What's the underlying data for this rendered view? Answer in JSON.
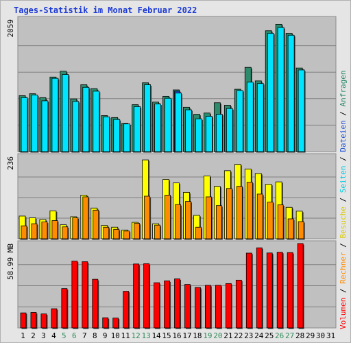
{
  "header": {
    "title": "Tages-Statistik im Monat Februar 2022"
  },
  "colors": {
    "anfragen": "#2e8b6b",
    "dateien": "#00e5ff",
    "seiten": "#1e50d0",
    "besuche": "#ffff00",
    "rechner": "#ff8c00",
    "volumen": "#ff0000",
    "weekend_day": "#2e8b57",
    "workday": "#000000",
    "panel": "#c0c0c0",
    "grid": "#808080"
  },
  "chart_data": [
    {
      "type": "bar",
      "panel": "hits",
      "ylabel": "2059",
      "ymax": 2059,
      "categories": [
        "1",
        "2",
        "3",
        "4",
        "5",
        "6",
        "7",
        "8",
        "9",
        "10",
        "11",
        "12",
        "13",
        "14",
        "15",
        "16",
        "17",
        "18",
        "19",
        "20",
        "21",
        "22",
        "23",
        "24",
        "25",
        "26",
        "27",
        "28",
        "29",
        "30",
        "31"
      ],
      "weekend": [
        "5",
        "6",
        "12",
        "13",
        "19",
        "20",
        "26",
        "27"
      ],
      "series": [
        {
          "name": "Anfragen",
          "values": [
            870,
            900,
            840,
            1160,
            1250,
            820,
            1040,
            980,
            560,
            530,
            440,
            730,
            1070,
            770,
            860,
            960,
            690,
            580,
            600,
            760,
            720,
            970,
            1310,
            1100,
            1880,
            1980,
            1840,
            1300,
            0,
            0,
            0
          ]
        },
        {
          "name": "Dateien",
          "values": [
            840,
            880,
            790,
            1140,
            1200,
            780,
            1000,
            940,
            540,
            500,
            430,
            700,
            1040,
            740,
            830,
            910,
            650,
            510,
            550,
            580,
            670,
            950,
            1080,
            1060,
            1840,
            1930,
            1810,
            1270,
            0,
            0,
            0
          ]
        },
        {
          "name": "Seiten",
          "values": [
            0,
            0,
            0,
            0,
            0,
            0,
            0,
            0,
            0,
            0,
            0,
            0,
            0,
            0,
            0,
            940,
            0,
            0,
            0,
            0,
            0,
            0,
            0,
            0,
            0,
            0,
            0,
            0,
            0,
            0,
            0
          ]
        }
      ]
    },
    {
      "type": "bar",
      "panel": "visits",
      "ylabel": "236",
      "ymax": 236,
      "categories": [
        "1",
        "2",
        "3",
        "4",
        "5",
        "6",
        "7",
        "8",
        "9",
        "10",
        "11",
        "12",
        "13",
        "14",
        "15",
        "16",
        "17",
        "18",
        "19",
        "20",
        "21",
        "22",
        "23",
        "24",
        "25",
        "26",
        "27",
        "28",
        "29",
        "30",
        "31"
      ],
      "series": [
        {
          "name": "Besuche",
          "values": [
            65,
            60,
            55,
            80,
            40,
            63,
            125,
            88,
            38,
            33,
            25,
            47,
            226,
            43,
            170,
            160,
            133,
            67,
            180,
            150,
            195,
            213,
            200,
            187,
            156,
            163,
            90,
            79,
            0,
            0,
            0
          ]
        },
        {
          "name": "Rechner",
          "values": [
            37,
            43,
            48,
            52,
            34,
            60,
            120,
            82,
            33,
            27,
            22,
            44,
            122,
            39,
            125,
            98,
            107,
            33,
            120,
            95,
            144,
            150,
            162,
            128,
            105,
            97,
            57,
            49,
            0,
            0,
            0
          ]
        }
      ]
    },
    {
      "type": "bar",
      "panel": "volume",
      "ylabel": "58.99 MB",
      "ymax": 58.99,
      "categories": [
        "1",
        "2",
        "3",
        "4",
        "5",
        "6",
        "7",
        "8",
        "9",
        "10",
        "11",
        "12",
        "13",
        "14",
        "15",
        "16",
        "17",
        "18",
        "19",
        "20",
        "21",
        "22",
        "23",
        "24",
        "25",
        "26",
        "27",
        "28",
        "29",
        "30",
        "31"
      ],
      "series": [
        {
          "name": "Volumen",
          "values": [
            10.5,
            10.8,
            9.8,
            13.4,
            27.5,
            46.7,
            46.3,
            34.0,
            7.1,
            6.9,
            25.6,
            44.7,
            44.9,
            31.6,
            32.9,
            34.3,
            30.4,
            28.3,
            29.8,
            29.8,
            31.0,
            33.4,
            52.3,
            56.0,
            52.4,
            52.9,
            52.7,
            59.0,
            0,
            0,
            0
          ]
        }
      ]
    }
  ],
  "legend": {
    "sep": " / ",
    "volumen": "Volumen",
    "rechner": "Rechner",
    "besuche": "Besuche",
    "seiten": "Seiten",
    "dateien": "Dateien",
    "anfragen": "Anfragen"
  }
}
